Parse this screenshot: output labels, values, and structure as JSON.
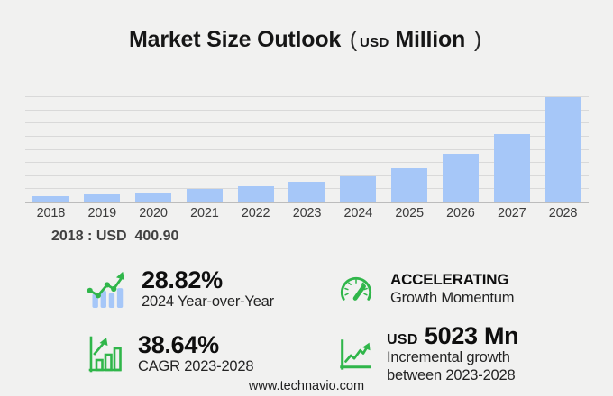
{
  "title": {
    "main": "Market Size Outlook",
    "open_paren": "(",
    "currency": "USD",
    "unit": "Million",
    "close_paren": ")"
  },
  "chart_data": {
    "type": "bar",
    "title": "Market Size Outlook (USD Million)",
    "categories": [
      "2018",
      "2019",
      "2020",
      "2021",
      "2022",
      "2023",
      "2024",
      "2025",
      "2026",
      "2027",
      "2028"
    ],
    "values": [
      400.9,
      498,
      610,
      780,
      975,
      1218.6,
      1569.8,
      2050,
      2860,
      4080,
      6241.6
    ],
    "xlabel": "",
    "ylabel": "",
    "ylim": [
      0,
      6241.6
    ],
    "gridline_count": 8,
    "grid": "horizontal",
    "legend": false,
    "bar_color": "#a6c7f8"
  },
  "annotation": {
    "text": "2018 : USD  400.90"
  },
  "stats": [
    {
      "icon": "bar-line-growth-icon",
      "value": "28.82%",
      "label": "2024 Year-over-Year"
    },
    {
      "icon": "gauge-icon",
      "value": "ACCELERATING",
      "label": "Growth Momentum"
    },
    {
      "icon": "bar-chart-arrow-icon",
      "value": "38.64%",
      "label": "CAGR 2023-2028"
    },
    {
      "icon": "line-chart-axis-icon",
      "currency": "USD",
      "value": "5023 Mn",
      "label_line1": "Incremental growth",
      "label_line2": "between 2023-2028"
    }
  ],
  "footer": {
    "url": "www.technavio.com"
  },
  "colors": {
    "background": "#f1f1f0",
    "bar": "#a6c7f8",
    "green": "#30b64a",
    "gridline": "#d9d9d9",
    "axis": "#bcbcbc"
  }
}
